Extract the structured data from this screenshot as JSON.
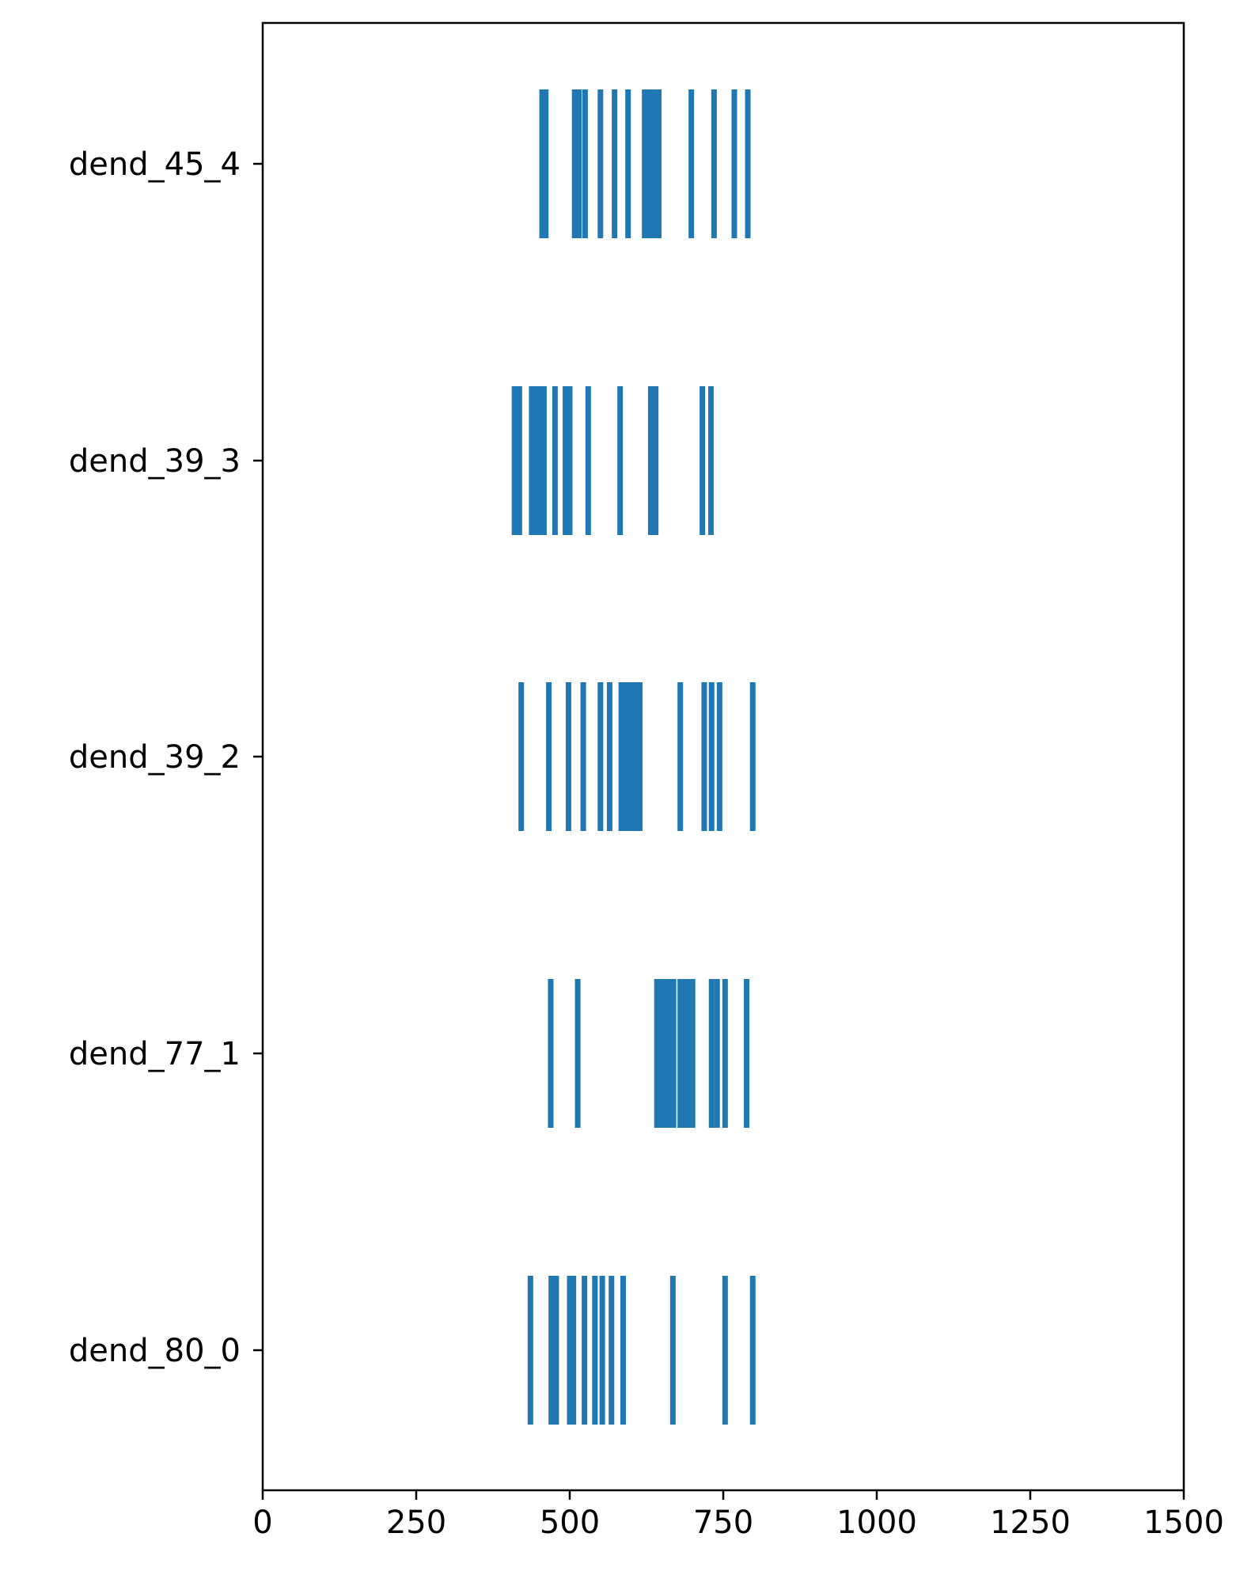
{
  "chart_data": {
    "type": "eventplot",
    "title": "",
    "xlabel": "",
    "ylabel": "",
    "xlim": [
      0,
      1500
    ],
    "xticks": [
      0,
      250,
      500,
      750,
      1000,
      1250,
      1500
    ],
    "xtick_labels": [
      "0",
      "250",
      "500",
      "750",
      "1000",
      "1250",
      "1500"
    ],
    "color": "#1f77b4",
    "grid": false,
    "series": [
      {
        "label": "dend_80_0",
        "events": [
          436,
          470,
          478,
          500,
          506,
          524,
          541,
          553,
          568,
          587,
          668,
          753,
          798
        ]
      },
      {
        "label": "dend_77_1",
        "events": [
          469,
          513,
          642,
          647,
          651,
          655,
          660,
          664,
          669,
          680,
          685,
          691,
          697,
          700,
          731,
          740,
          753,
          788
        ]
      },
      {
        "label": "dend_39_2",
        "events": [
          421,
          466,
          498,
          522,
          550,
          565,
          584,
          592,
          600,
          607,
          614,
          680,
          719,
          731,
          744,
          798
        ]
      },
      {
        "label": "dend_39_3",
        "events": [
          410,
          418,
          438,
          446,
          452,
          458,
          476,
          493,
          500,
          530,
          582,
          632,
          640,
          716,
          730
        ]
      },
      {
        "label": "dend_45_4",
        "events": [
          455,
          461,
          508,
          515,
          525,
          550,
          573,
          595,
          622,
          630,
          637,
          645,
          698,
          735,
          768,
          790
        ]
      }
    ]
  }
}
